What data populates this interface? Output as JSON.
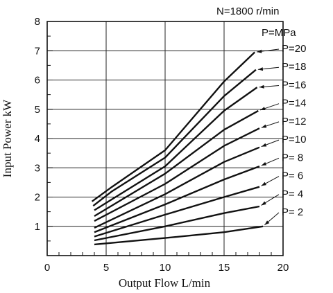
{
  "chart_data": {
    "type": "line",
    "condition_label": "N=1800 r/min",
    "legend_header": "P=MPa",
    "xlabel": "Output Flow   L/min",
    "ylabel": "Input Power   kW",
    "xlim": [
      0,
      20
    ],
    "ylim": [
      0,
      8
    ],
    "x_ticks": [
      "0",
      "5",
      "10",
      "15",
      "20"
    ],
    "y_ticks": [
      "1",
      "2",
      "3",
      "4",
      "5",
      "6",
      "7",
      "8"
    ],
    "grid": true,
    "series": [
      {
        "name": "P=20",
        "x": [
          3.8,
          5.5,
          10,
          15,
          17.6
        ],
        "y": [
          1.85,
          2.35,
          3.6,
          5.95,
          6.95
        ]
      },
      {
        "name": "P=18",
        "x": [
          3.9,
          5.5,
          10,
          15,
          17.7
        ],
        "y": [
          1.7,
          2.2,
          3.35,
          5.45,
          6.35
        ]
      },
      {
        "name": "P=16",
        "x": [
          4.0,
          10,
          15,
          17.8
        ],
        "y": [
          1.55,
          3.05,
          4.95,
          5.75
        ]
      },
      {
        "name": "P=14",
        "x": [
          4.0,
          10,
          15,
          17.9
        ],
        "y": [
          1.35,
          2.8,
          4.3,
          4.95
        ]
      },
      {
        "name": "P=12",
        "x": [
          4.0,
          10,
          15,
          18
        ],
        "y": [
          1.18,
          2.45,
          3.75,
          4.35
        ]
      },
      {
        "name": "P=10",
        "x": [
          4.0,
          10,
          15,
          18
        ],
        "y": [
          0.95,
          2.1,
          3.2,
          3.7
        ]
      },
      {
        "name": "P=  8",
        "x": [
          4.0,
          10,
          15,
          18
        ],
        "y": [
          0.8,
          1.75,
          2.6,
          3.05
        ]
      },
      {
        "name": "P=  6",
        "x": [
          4.0,
          10,
          15,
          18
        ],
        "y": [
          0.65,
          1.4,
          2.0,
          2.35
        ]
      },
      {
        "name": "P=  4",
        "x": [
          4.0,
          10,
          15,
          18
        ],
        "y": [
          0.52,
          1.0,
          1.45,
          1.68
        ]
      },
      {
        "name": "P=  2",
        "x": [
          4.0,
          10,
          15,
          18.3
        ],
        "y": [
          0.38,
          0.6,
          0.8,
          1.0
        ]
      }
    ]
  }
}
